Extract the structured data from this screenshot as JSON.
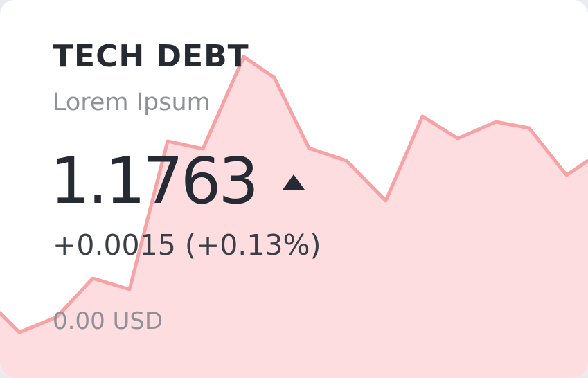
{
  "ticker": {
    "title": "TECH DEBT",
    "subtitle": "Lorem Ipsum",
    "price": "1.1763",
    "trend_direction": "up",
    "trend_icon": "triangle-up-icon",
    "change": "+0.0015 (+0.13%)",
    "balance": "0.00 USD"
  },
  "colors": {
    "spark_line": "#f7a2a5",
    "spark_fill": "#fddde0",
    "text_primary": "#262b33",
    "text_muted": "#8e9196"
  }
}
